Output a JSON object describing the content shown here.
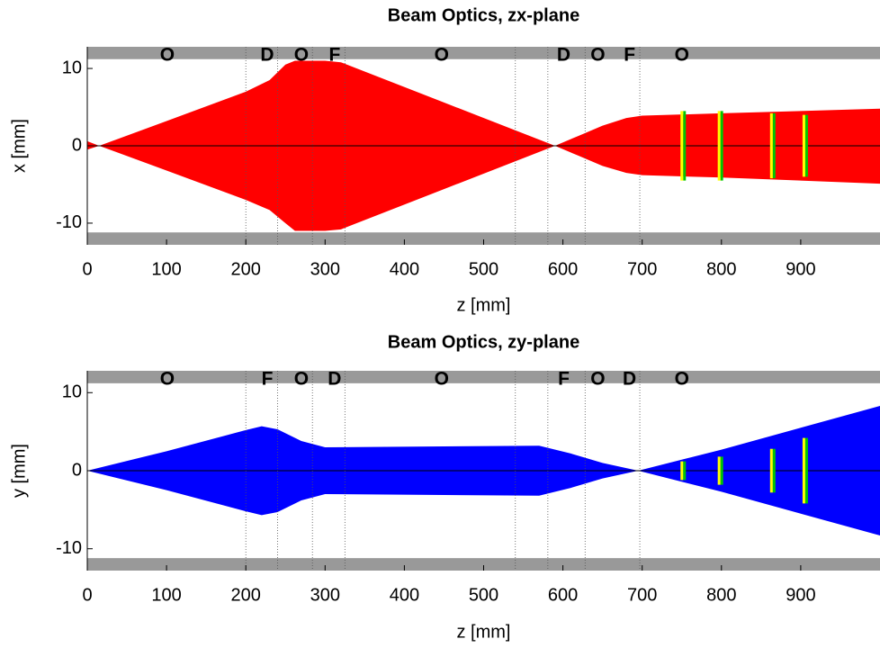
{
  "chart_data": [
    {
      "type": "area",
      "title": "Beam Optics, zx-plane",
      "xlabel": "z [mm]",
      "ylabel": "x [mm]",
      "xlim": [
        0,
        1000
      ],
      "ylim": [
        -12.8,
        12.8
      ],
      "xticks": [
        0,
        100,
        200,
        300,
        400,
        500,
        600,
        700,
        800,
        900
      ],
      "yticks": [
        -10,
        0,
        10
      ],
      "color": "#ff0000",
      "aperture": 11.2,
      "envelope": {
        "x": [
          0,
          15,
          100,
          200,
          230,
          250,
          262,
          300,
          320,
          450,
          590,
          620,
          650,
          680,
          700,
          800,
          1000
        ],
        "upper": [
          0.6,
          0,
          3.2,
          7,
          8.5,
          10.5,
          11,
          11,
          10.8,
          5.6,
          0,
          1.3,
          2.6,
          3.6,
          3.9,
          4.2,
          4.8
        ],
        "lower": [
          -0.5,
          0,
          -3.2,
          -7,
          -8.3,
          -10,
          -11,
          -11,
          -10.8,
          -5.6,
          0,
          -1.3,
          -2.6,
          -3.5,
          -3.8,
          -4.1,
          -4.9
        ]
      },
      "element_edges": [
        200,
        240,
        284,
        325,
        540,
        581,
        628,
        697
      ],
      "elements": [
        {
          "label": "O",
          "z": 101
        },
        {
          "label": "D",
          "z": 227
        },
        {
          "label": "O",
          "z": 270
        },
        {
          "label": "F",
          "z": 312
        },
        {
          "label": "O",
          "z": 447
        },
        {
          "label": "D",
          "z": 601
        },
        {
          "label": "O",
          "z": 644
        },
        {
          "label": "F",
          "z": 684
        },
        {
          "label": "O",
          "z": 750
        }
      ],
      "markers": {
        "z": [
          750,
          797,
          863,
          904
        ],
        "halfheight": [
          4.5,
          4.5,
          4.2,
          4.0
        ]
      }
    },
    {
      "type": "area",
      "title": "Beam Optics, zy-plane",
      "xlabel": "z [mm]",
      "ylabel": "y [mm]",
      "xlim": [
        0,
        1000
      ],
      "ylim": [
        -12.8,
        12.8
      ],
      "xticks": [
        0,
        100,
        200,
        300,
        400,
        500,
        600,
        700,
        800,
        900
      ],
      "yticks": [
        -10,
        0,
        10
      ],
      "color": "#0000ff",
      "aperture": 11.2,
      "envelope": {
        "x": [
          0,
          100,
          200,
          220,
          240,
          270,
          300,
          570,
          610,
          650,
          695,
          800,
          1000
        ],
        "upper": [
          0,
          2.5,
          5.2,
          5.7,
          5.3,
          3.8,
          3.0,
          3.2,
          2.2,
          1.0,
          0,
          2.7,
          8.3
        ],
        "lower": [
          0,
          -2.5,
          -5.2,
          -5.7,
          -5.3,
          -3.8,
          -3.0,
          -3.2,
          -2.2,
          -1.0,
          0,
          -2.7,
          -8.3
        ]
      },
      "element_edges": [
        200,
        240,
        284,
        325,
        540,
        581,
        628,
        697
      ],
      "elements": [
        {
          "label": "O",
          "z": 101
        },
        {
          "label": "F",
          "z": 227
        },
        {
          "label": "O",
          "z": 270
        },
        {
          "label": "D",
          "z": 312
        },
        {
          "label": "O",
          "z": 447
        },
        {
          "label": "F",
          "z": 601
        },
        {
          "label": "O",
          "z": 644
        },
        {
          "label": "D",
          "z": 684
        },
        {
          "label": "O",
          "z": 750
        }
      ],
      "markers": {
        "z": [
          750,
          797,
          863,
          904
        ],
        "halfheight": [
          1.2,
          1.8,
          2.8,
          4.2
        ]
      }
    }
  ]
}
